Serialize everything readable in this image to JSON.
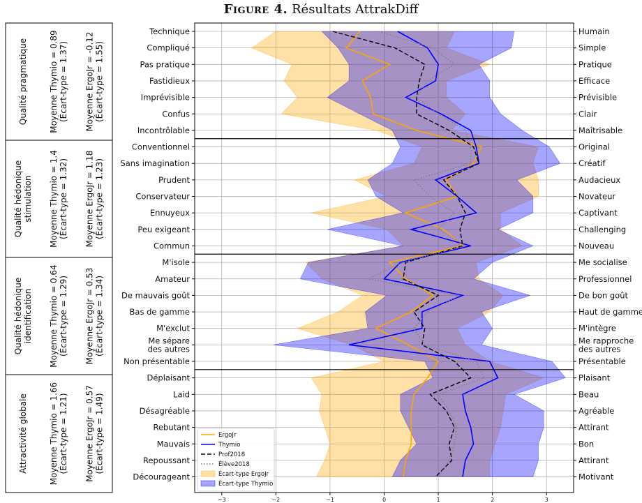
{
  "figure": {
    "label": "Figure 4.",
    "title": "Résultats AttrakDiff"
  },
  "groups": [
    {
      "name": "Qualité pragmatique",
      "thymio_mean": "Moyenne Thymio = 0.89",
      "thymio_sd": "(Écart-type = 1.37)",
      "ergojr_mean": "Moyenne ErgoJr = -0.12",
      "ergojr_sd": "(Écart-type = 1.55)"
    },
    {
      "name": "Qualité hédonique stimulation",
      "name_lines": [
        "Qualité hédonique",
        "stimulation"
      ],
      "thymio_mean": "Moyenne Thymio = 1.4",
      "thymio_sd": "(Écart-type = 1.32)",
      "ergojr_mean": "Moyenne ErgoJr = 1.18",
      "ergojr_sd": "(Écart-type = 1.23)"
    },
    {
      "name": "Qualité hédonique identification",
      "name_lines": [
        "Qualité hédonique",
        "identification"
      ],
      "thymio_mean": "Moyenne Thymio = 0.64",
      "thymio_sd": "(Écart-type = 1.29)",
      "ergojr_mean": "Moyenne ErgoJr = 0.53",
      "ergojr_sd": "(Écart-type = 1.34)"
    },
    {
      "name": "Attractivité globale",
      "thymio_mean": "Moyenne Thymio = 1.66",
      "thymio_sd": "(Écart-type = 1.21)",
      "ergojr_mean": "Moyenne ErgoJr = 0.57",
      "ergojr_sd": "(Écart-type = 1.49)"
    }
  ],
  "chart_data": {
    "type": "line",
    "orientation": "horizontal",
    "xlim": [
      -3.5,
      3.5
    ],
    "x_ticks": [
      -3,
      -2,
      -1,
      0,
      1,
      2,
      3
    ],
    "grid": true,
    "legend_position": "bottom-left",
    "left_labels": [
      "Technique",
      "Compliqué",
      "Pas pratique",
      "Fastidieux",
      "Imprévisible",
      "Confus",
      "Incontrôlable",
      "Conventionnel",
      "Sans imagination",
      "Prudent",
      "Conservateur",
      "Ennuyeux",
      "Peu exigeant",
      "Commun",
      "M'isole",
      "Amateur",
      "De mauvais goût",
      "Bas de gamme",
      "M'exclut",
      "Me sépare\ndes autres",
      "Non présentable",
      "Déplaisant",
      "Laid",
      "Désagréable",
      "Rebutant",
      "Mauvais",
      "Repoussant",
      "Décourageant"
    ],
    "right_labels": [
      "Humain",
      "Simple",
      "Pratique",
      "Efficace",
      "Prévisible",
      "Clair",
      "Maîtrisable",
      "Original",
      "Créatif",
      "Audacieux",
      "Novateur",
      "Captivant",
      "Challenging",
      "Nouveau",
      "Me socialise",
      "Professionnel",
      "De bon goût",
      "Haut de gamme",
      "M'intègre",
      "Me rapproche\ndes autres",
      "Présentable",
      "Plaisant",
      "Beau",
      "Agréable",
      "Attirant",
      "Bon",
      "Attirant",
      "Motivant"
    ],
    "series": [
      {
        "name": "ErgoJr",
        "style": "solid",
        "color": "#ffa500",
        "values": [
          -0.45,
          -0.7,
          0.1,
          -0.4,
          -0.25,
          -0.2,
          0.6,
          1.8,
          1.65,
          1.15,
          1.35,
          0.4,
          1.1,
          1.45,
          0.1,
          0.4,
          0.9,
          0.5,
          -0.15,
          0.45,
          1.0,
          0.8,
          0.55,
          0.5,
          0.5,
          0.5,
          0.4,
          0.35
        ]
      },
      {
        "name": "Thymio",
        "style": "solid",
        "color": "#0000ff",
        "values": [
          0.25,
          0.8,
          1.0,
          0.95,
          0.4,
          1.05,
          1.6,
          1.7,
          1.75,
          0.95,
          1.35,
          1.7,
          0.5,
          1.6,
          0.3,
          0.0,
          1.45,
          0.7,
          0.7,
          -0.65,
          1.95,
          2.1,
          1.45,
          1.5,
          1.6,
          1.65,
          1.5,
          1.45
        ]
      },
      {
        "name": "Prof2018",
        "style": "dashed",
        "color": "#000000",
        "values": [
          -0.95,
          0.2,
          0.75,
          0.65,
          0.6,
          0.6,
          1.2,
          1.65,
          1.75,
          1.1,
          1.35,
          1.5,
          1.4,
          1.45,
          0.4,
          0.35,
          1.0,
          0.55,
          0.75,
          0.7,
          1.3,
          1.6,
          0.85,
          1.15,
          1.3,
          1.2,
          1.25,
          0.95
        ]
      },
      {
        "name": "Élève2018",
        "style": "dotted",
        "color": "#808080",
        "values": [
          -0.1,
          0.9,
          1.3,
          0.8,
          0.6,
          1.0,
          1.5,
          1.6,
          1.6,
          0.55,
          0.85,
          1.3,
          1.0,
          1.5,
          0.35,
          -0.3,
          1.4,
          0.8,
          0.55,
          0.75,
          1.7,
          1.85,
          1.0,
          1.2,
          1.35,
          1.3,
          1.2,
          1.0
        ]
      }
    ],
    "bands": [
      {
        "name": "Écart-type ErgoJr",
        "color": "#ffa500",
        "opacity": 0.35,
        "low": [
          -2.0,
          -2.45,
          -1.7,
          -1.85,
          -1.6,
          -1.9,
          -0.15,
          0.7,
          0.55,
          -0.55,
          0.05,
          -1.35,
          0.05,
          0.35,
          -1.45,
          -1.15,
          -0.4,
          -0.85,
          -1.6,
          -0.6,
          0.0,
          -1.35,
          -1.15,
          -1.2,
          -1.1,
          -1.0,
          -1.1,
          -1.25
        ],
        "high": [
          1.3,
          1.15,
          1.95,
          1.15,
          1.15,
          1.5,
          1.25,
          2.85,
          2.75,
          2.85,
          2.85,
          2.15,
          2.15,
          2.55,
          1.7,
          1.75,
          2.2,
          1.95,
          1.35,
          1.5,
          1.95,
          2.95,
          2.25,
          2.2,
          2.15,
          2.05,
          1.95,
          1.95
        ]
      },
      {
        "name": "Écart-type Thymio",
        "color": "#0000ff",
        "opacity": 0.35,
        "low": [
          -1.15,
          -0.85,
          -0.65,
          -0.65,
          -1.05,
          -0.45,
          0.15,
          0.3,
          0.15,
          -0.3,
          -0.15,
          0.35,
          -1.05,
          0.35,
          -1.4,
          -1.55,
          0.05,
          -0.35,
          -0.3,
          -2.05,
          0.75,
          0.9,
          0.3,
          0.3,
          0.45,
          0.6,
          0.3,
          0.15
        ]
      },
      {
        "placeholder": true
      }
    ]
  },
  "legend": [
    "ErgoJr",
    "Thymio",
    "Prof2018",
    "Élève2018",
    "Écart-type ErgoJr",
    "Écart-type Thymio"
  ]
}
